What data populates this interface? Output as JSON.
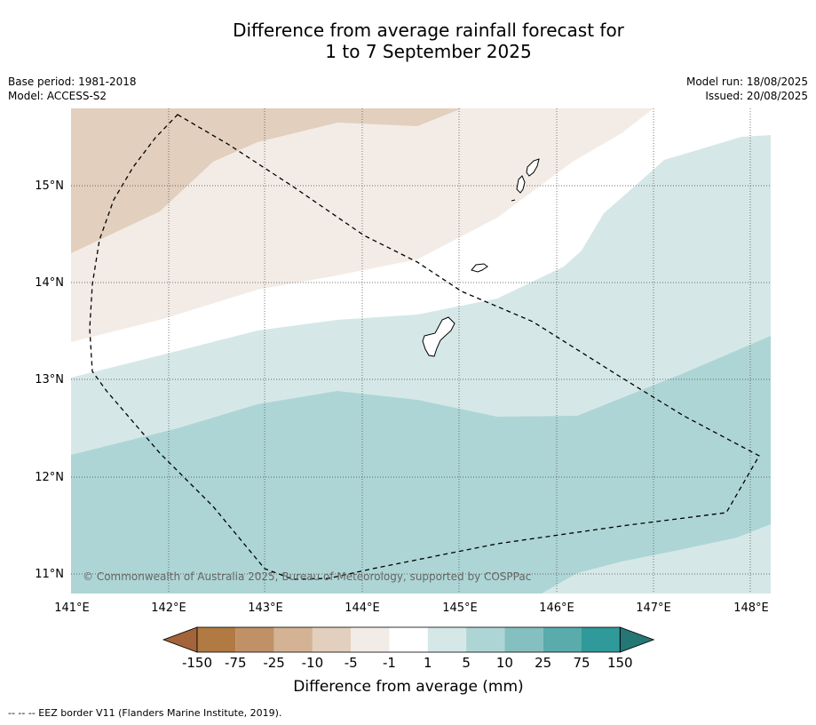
{
  "title": {
    "line1": "Difference from average rainfall forecast for",
    "line2": "1 to 7 September 2025"
  },
  "meta": {
    "base_period": "Base period: 1981-2018",
    "model": "Model: ACCESS-S2",
    "model_run": "Model run: 18/08/2025",
    "issued": "Issued: 20/08/2025"
  },
  "map": {
    "lat_labels": [
      "15°N",
      "14°N",
      "13°N",
      "12°N",
      "11°N"
    ],
    "lon_labels": [
      "141°E",
      "142°E",
      "143°E",
      "144°E",
      "145°E",
      "146°E",
      "147°E",
      "148°E"
    ],
    "copyright": "© Commonwealth of Australia 2025, Bureau of Meteorology, supported by COSPPac",
    "colors": {
      "dry_25_10": "#e2cfbd",
      "dry_5_1": "#f3ece6",
      "neutral": "#ffffff",
      "wet_1_5": "#d5e8e7",
      "wet_5_10": "#aed5d5"
    }
  },
  "colorbar": {
    "ticks": [
      "-150",
      "-75",
      "-25",
      "-10",
      "-5",
      "-1",
      "1",
      "5",
      "10",
      "25",
      "75",
      "150"
    ],
    "colors": [
      "#a3643a",
      "#b07a42",
      "#c09166",
      "#d4b394",
      "#e2cfbd",
      "#f3ece6",
      "#ffffff",
      "#d5e8e7",
      "#aed5d5",
      "#85c0c0",
      "#5aabab",
      "#2f9a99",
      "#247775"
    ],
    "label": "Difference from average (mm)"
  },
  "footnote": "--  --  -- EEZ border V11 (Flanders Marine Institute, 2019)."
}
